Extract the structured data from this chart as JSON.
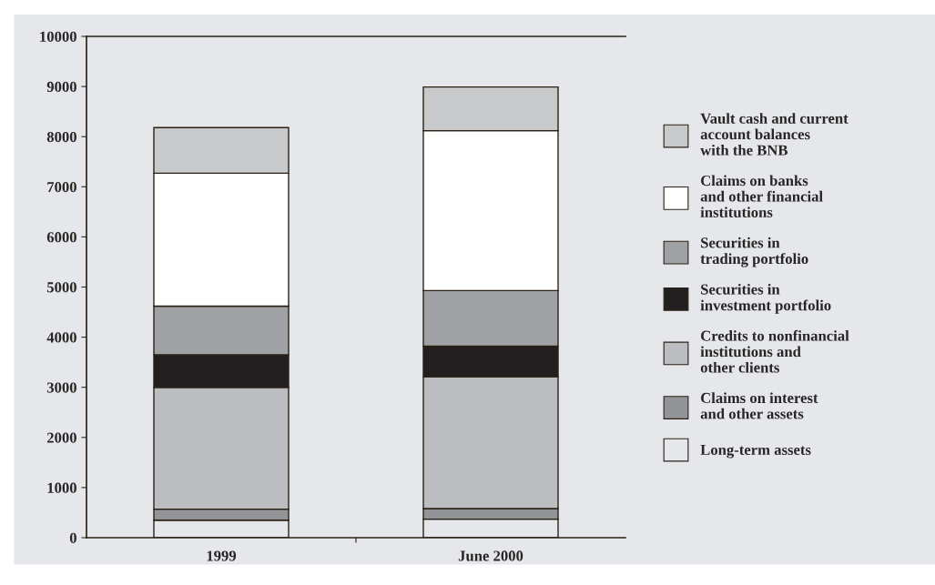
{
  "chart_data": {
    "type": "bar",
    "stacked": true,
    "categories": [
      "1999",
      "June 2000"
    ],
    "series": [
      {
        "name": "Long-term assets",
        "color": "#e6e7ea",
        "values": [
          350,
          370
        ]
      },
      {
        "name": "Claims on interest\nand other assets",
        "color": "#939497",
        "values": [
          220,
          210
        ]
      },
      {
        "name": "Credits to nonfinancial\ninstitutions and\nother clients",
        "color": "#bcbdc1",
        "values": [
          2430,
          2630
        ]
      },
      {
        "name": "Securities in\ninvestment portfolio",
        "color": "#221f20",
        "values": [
          650,
          610
        ]
      },
      {
        "name": "Securities in\ntrading portfolio",
        "color": "#a0a1a4",
        "values": [
          970,
          1110
        ]
      },
      {
        "name": "Claims on banks\nand other financial\ninstitutions",
        "color": "#ffffff",
        "values": [
          2650,
          3190
        ]
      },
      {
        "name": "Vault cash and current\naccount balances\nwith the BNB",
        "color": "#c8c9cb",
        "values": [
          910,
          870
        ]
      }
    ],
    "ylim": [
      0,
      10000
    ],
    "yticks": [
      0,
      1000,
      2000,
      3000,
      4000,
      5000,
      6000,
      7000,
      8000,
      9000,
      10000
    ],
    "grid": false,
    "legend": "right"
  }
}
